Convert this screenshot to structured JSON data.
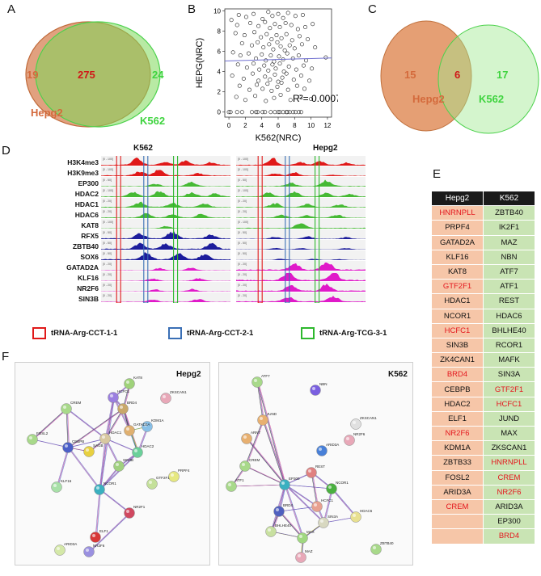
{
  "panels": {
    "a": "A",
    "b": "B",
    "c": "C",
    "d": "D",
    "e": "E",
    "f": "F"
  },
  "panel_a": {
    "left_label": "Hepg2",
    "right_label": "K562",
    "left_only": "19",
    "overlap": "275",
    "right_only": "24",
    "colors": {
      "left": "#d46a3c",
      "right": "#3fd43f",
      "overlap_text": "#d01818"
    }
  },
  "panel_c": {
    "left_label": "Hepg2",
    "right_label": "K562",
    "left_only": "15",
    "overlap": "6",
    "right_only": "17"
  },
  "chart_data": {
    "type": "scatter",
    "title": "",
    "xlabel": "K562(NRC)",
    "ylabel": "HEPG(NRC)",
    "xlim": [
      -0.5,
      12.5
    ],
    "ylim": [
      -0.5,
      10.2
    ],
    "xticks": [
      "0",
      "2",
      "4",
      "6",
      "8",
      "10",
      "12"
    ],
    "yticks": [
      "0",
      "2",
      "4",
      "6",
      "8",
      "10"
    ],
    "annotation": "R²= 0.0007",
    "trend_line": {
      "x": [
        -0.5,
        12.5
      ],
      "y": [
        5.05,
        5.35
      ]
    },
    "points": [
      [
        0.3,
        9.1
      ],
      [
        1.2,
        9.6
      ],
      [
        2.1,
        9.4
      ],
      [
        3.0,
        9.7
      ],
      [
        4.1,
        9.2
      ],
      [
        4.8,
        9.9
      ],
      [
        5.3,
        9.5
      ],
      [
        6.0,
        9.7
      ],
      [
        6.6,
        9.3
      ],
      [
        7.2,
        9.8
      ],
      [
        8.1,
        9.5
      ],
      [
        9.0,
        9.6
      ],
      [
        1.0,
        8.6
      ],
      [
        2.6,
        8.8
      ],
      [
        3.6,
        8.5
      ],
      [
        4.4,
        8.9
      ],
      [
        5.0,
        8.3
      ],
      [
        5.6,
        8.7
      ],
      [
        6.2,
        8.4
      ],
      [
        6.9,
        8.8
      ],
      [
        7.6,
        8.6
      ],
      [
        8.4,
        8.2
      ],
      [
        9.3,
        8.4
      ],
      [
        10.2,
        8.7
      ],
      [
        0.8,
        7.8
      ],
      [
        1.9,
        7.6
      ],
      [
        3.1,
        7.9
      ],
      [
        3.9,
        7.4
      ],
      [
        4.6,
        7.7
      ],
      [
        5.2,
        7.2
      ],
      [
        5.8,
        7.6
      ],
      [
        6.4,
        7.3
      ],
      [
        7.0,
        7.7
      ],
      [
        7.7,
        7.1
      ],
      [
        8.6,
        7.5
      ],
      [
        9.6,
        7.2
      ],
      [
        1.6,
        6.8
      ],
      [
        2.8,
        6.6
      ],
      [
        3.5,
        6.9
      ],
      [
        4.2,
        6.4
      ],
      [
        4.9,
        6.7
      ],
      [
        5.4,
        6.2
      ],
      [
        5.9,
        6.9
      ],
      [
        6.3,
        6.5
      ],
      [
        6.8,
        6.1
      ],
      [
        7.4,
        6.6
      ],
      [
        8.0,
        6.3
      ],
      [
        8.9,
        6.7
      ],
      [
        10.5,
        6.4
      ],
      [
        0.5,
        5.9
      ],
      [
        1.4,
        5.6
      ],
      [
        2.4,
        5.8
      ],
      [
        3.3,
        5.3
      ],
      [
        4.0,
        5.7
      ],
      [
        4.5,
        5.1
      ],
      [
        5.1,
        5.6
      ],
      [
        5.5,
        5.0
      ],
      [
        6.1,
        5.5
      ],
      [
        6.6,
        5.2
      ],
      [
        7.1,
        5.8
      ],
      [
        7.8,
        5.3
      ],
      [
        8.5,
        5.6
      ],
      [
        9.4,
        5.1
      ],
      [
        11.8,
        5.4
      ],
      [
        1.1,
        4.7
      ],
      [
        2.2,
        4.4
      ],
      [
        3.0,
        4.8
      ],
      [
        3.7,
        4.2
      ],
      [
        4.3,
        4.6
      ],
      [
        4.8,
        4.1
      ],
      [
        5.3,
        4.7
      ],
      [
        5.7,
        4.3
      ],
      [
        6.2,
        4.8
      ],
      [
        6.7,
        4.0
      ],
      [
        7.3,
        4.5
      ],
      [
        8.2,
        4.2
      ],
      [
        9.1,
        4.6
      ],
      [
        10.1,
        4.3
      ],
      [
        0.4,
        3.6
      ],
      [
        1.8,
        3.3
      ],
      [
        2.9,
        3.8
      ],
      [
        3.6,
        3.1
      ],
      [
        4.4,
        3.5
      ],
      [
        5.0,
        3.2
      ],
      [
        5.6,
        3.7
      ],
      [
        6.0,
        3.0
      ],
      [
        6.5,
        3.4
      ],
      [
        7.0,
        3.8
      ],
      [
        7.9,
        3.2
      ],
      [
        8.8,
        3.6
      ],
      [
        9.8,
        3.1
      ],
      [
        1.3,
        2.6
      ],
      [
        2.5,
        2.2
      ],
      [
        3.4,
        2.7
      ],
      [
        4.1,
        2.3
      ],
      [
        4.7,
        2.8
      ],
      [
        5.2,
        2.1
      ],
      [
        5.9,
        2.5
      ],
      [
        6.4,
        2.9
      ],
      [
        7.2,
        2.2
      ],
      [
        8.3,
        2.6
      ],
      [
        9.2,
        2.3
      ],
      [
        0.9,
        1.5
      ],
      [
        2.0,
        1.2
      ],
      [
        3.2,
        1.6
      ],
      [
        4.5,
        1.1
      ],
      [
        5.5,
        1.4
      ],
      [
        6.3,
        1.7
      ],
      [
        7.5,
        1.2
      ],
      [
        8.7,
        1.5
      ],
      [
        10.0,
        1.3
      ],
      [
        0.0,
        0
      ],
      [
        0.2,
        0
      ],
      [
        1.0,
        0
      ],
      [
        1.6,
        0
      ],
      [
        2.8,
        0
      ],
      [
        3.3,
        0
      ],
      [
        3.5,
        0
      ],
      [
        4.1,
        0
      ],
      [
        4.4,
        0
      ],
      [
        5.1,
        0
      ],
      [
        5.6,
        0
      ],
      [
        6.0,
        0
      ],
      [
        6.2,
        0
      ],
      [
        6.6,
        0
      ],
      [
        7.0,
        0
      ],
      [
        7.1,
        0
      ],
      [
        7.4,
        0
      ],
      [
        7.8,
        0
      ],
      [
        8.1,
        0
      ],
      [
        8.5,
        0
      ],
      [
        8.8,
        0
      ]
    ]
  },
  "panel_d": {
    "cell_left": "K562",
    "cell_right": "Hepg2",
    "tracks": [
      {
        "name": "H3K4me3",
        "color": "#e01919",
        "range": "[0 - 100]"
      },
      {
        "name": "H3K9me3",
        "color": "#e01919",
        "range": "[0 - 100]"
      },
      {
        "name": "EP300",
        "color": "#46b934",
        "range": "[0 - 50]"
      },
      {
        "name": "HDAC2",
        "color": "#46b934",
        "range": "[0 - 100]"
      },
      {
        "name": "HDAC1",
        "color": "#46b934",
        "range": "[0 - 20]"
      },
      {
        "name": "HDAC6",
        "color": "#46b934",
        "range": "[0 - 20]"
      },
      {
        "name": "KAT8",
        "color": "#46b934",
        "range": "[0 - 100]"
      },
      {
        "name": "RFX5",
        "color": "#1d1d9c",
        "range": "[0 - 50]"
      },
      {
        "name": "ZBTB40",
        "color": "#1d1d9c",
        "range": "[0 - 50]"
      },
      {
        "name": "SOX6",
        "color": "#1d1d9c",
        "range": "[0 - 50]"
      },
      {
        "name": "GATAD2A",
        "color": "#e01ac9",
        "range": "[0 - 20]"
      },
      {
        "name": "KLF16",
        "color": "#e01ac9",
        "range": "[0 - 20]"
      },
      {
        "name": "NR2F6",
        "color": "#e01ac9",
        "range": "[0 - 20]"
      },
      {
        "name": "SIN3B",
        "color": "#e01ac9",
        "range": "[0 - 20]"
      }
    ],
    "legend": [
      {
        "label": "tRNA-Arg-CCT-1-1",
        "color": "#e01919"
      },
      {
        "label": "tRNA-Arg-CCT-2-1",
        "color": "#3a6fb5"
      },
      {
        "label": "tRNA-Arg-TCG-3-1",
        "color": "#2db82d"
      }
    ]
  },
  "panel_e": {
    "headers": [
      "Hepg2",
      "K562"
    ],
    "rows": [
      [
        {
          "t": "HNRNPLL",
          "red": true
        },
        {
          "t": "ZBTB40",
          "red": false
        }
      ],
      [
        {
          "t": "PRPF4",
          "red": false
        },
        {
          "t": "IK2F1",
          "red": false
        }
      ],
      [
        {
          "t": "GATAD2A",
          "red": false
        },
        {
          "t": "MAZ",
          "red": false
        }
      ],
      [
        {
          "t": "KLF16",
          "red": false
        },
        {
          "t": "NBN",
          "red": false
        }
      ],
      [
        {
          "t": "KAT8",
          "red": false
        },
        {
          "t": "ATF7",
          "red": false
        }
      ],
      [
        {
          "t": "GTF2F1",
          "red": true
        },
        {
          "t": "ATF1",
          "red": false
        }
      ],
      [
        {
          "t": "HDAC1",
          "red": false
        },
        {
          "t": "REST",
          "red": false
        }
      ],
      [
        {
          "t": "NCOR1",
          "red": false
        },
        {
          "t": "HDAC6",
          "red": false
        }
      ],
      [
        {
          "t": "HCFC1",
          "red": true
        },
        {
          "t": "BHLHE40",
          "red": false
        }
      ],
      [
        {
          "t": "SIN3B",
          "red": false
        },
        {
          "t": "RCOR1",
          "red": false
        }
      ],
      [
        {
          "t": "ZK4CAN1",
          "red": false
        },
        {
          "t": "MAFK",
          "red": false
        }
      ],
      [
        {
          "t": "BRD4",
          "red": true
        },
        {
          "t": "SIN3A",
          "red": false
        }
      ],
      [
        {
          "t": "CEBPB",
          "red": false
        },
        {
          "t": "GTF2F1",
          "red": true
        }
      ],
      [
        {
          "t": "HDAC2",
          "red": false
        },
        {
          "t": "HCFC1",
          "red": true
        }
      ],
      [
        {
          "t": "ELF1",
          "red": false
        },
        {
          "t": "JUND",
          "red": false
        }
      ],
      [
        {
          "t": "NR2F6",
          "red": true
        },
        {
          "t": "MAX",
          "red": false
        }
      ],
      [
        {
          "t": "KDM1A",
          "red": false
        },
        {
          "t": "ZKSCAN1",
          "red": false
        }
      ],
      [
        {
          "t": "ZBTB33",
          "red": false
        },
        {
          "t": "HNRNPLL",
          "red": true
        }
      ],
      [
        {
          "t": "FOSL2",
          "red": false
        },
        {
          "t": "CREM",
          "red": true
        }
      ],
      [
        {
          "t": "ARID3A",
          "red": false
        },
        {
          "t": "NR2F6",
          "red": true
        }
      ],
      [
        {
          "t": "CREM",
          "red": true
        },
        {
          "t": "ARID3A",
          "red": false
        }
      ],
      [
        {
          "t": "",
          "red": false
        },
        {
          "t": "EP300",
          "red": false
        }
      ],
      [
        {
          "t": "",
          "red": false
        },
        {
          "t": "BRD4",
          "red": true
        }
      ]
    ]
  },
  "panel_f": {
    "left_title": "Hepg2",
    "right_title": "K562",
    "left_nodes": [
      {
        "id": "KAT8",
        "x": 160,
        "y": 475,
        "c": "#9fd27a"
      },
      {
        "id": "HCFC1",
        "x": 140,
        "y": 492,
        "c": "#9b7fe0"
      },
      {
        "id": "ZKSCAN1",
        "x": 205,
        "y": 493,
        "c": "#e8a8b8"
      },
      {
        "id": "CREM",
        "x": 82,
        "y": 506,
        "c": "#a8d98a"
      },
      {
        "id": "BRD4",
        "x": 152,
        "y": 506,
        "c": "#c9a86a"
      },
      {
        "id": "KDM1A",
        "x": 182,
        "y": 528,
        "c": "#88c0e8"
      },
      {
        "id": "GATAD2A",
        "x": 160,
        "y": 533,
        "c": "#e0b070"
      },
      {
        "id": "HDAC1",
        "x": 130,
        "y": 543,
        "c": "#d8c8a0"
      },
      {
        "id": "FOSL2",
        "x": 40,
        "y": 544,
        "c": "#a8d98a"
      },
      {
        "id": "CEBPB",
        "x": 84,
        "y": 554,
        "c": "#4b5fc8"
      },
      {
        "id": "SAGB",
        "x": 110,
        "y": 559,
        "c": "#e8d040"
      },
      {
        "id": "HDAC2",
        "x": 170,
        "y": 560,
        "c": "#6bd09a"
      },
      {
        "id": "SIN3B",
        "x": 147,
        "y": 577,
        "c": "#a0d080"
      },
      {
        "id": "PRPF4",
        "x": 215,
        "y": 590,
        "c": "#e6e880"
      },
      {
        "id": "GTF2F1",
        "x": 188,
        "y": 599,
        "c": "#c4e09a"
      },
      {
        "id": "KLF16",
        "x": 70,
        "y": 603,
        "c": "#a8e0a8"
      },
      {
        "id": "NCOR1",
        "x": 123,
        "y": 606,
        "c": "#3ab0c0"
      },
      {
        "id": "NR2F1",
        "x": 160,
        "y": 635,
        "c": "#d04860"
      },
      {
        "id": "ELF1",
        "x": 118,
        "y": 665,
        "c": "#d83838"
      },
      {
        "id": "ARID3A",
        "x": 74,
        "y": 681,
        "c": "#d4e8a8"
      },
      {
        "id": "NR2F6",
        "x": 110,
        "y": 683,
        "c": "#9a90e0"
      }
    ],
    "right_nodes": [
      {
        "id": "ATF7",
        "x": 318,
        "y": 473,
        "c": "#a8d98a"
      },
      {
        "id": "NBN",
        "x": 390,
        "y": 483,
        "c": "#7a5fe0"
      },
      {
        "id": "JUND",
        "x": 325,
        "y": 520,
        "c": "#e8b070"
      },
      {
        "id": "ZKSCAN1",
        "x": 440,
        "y": 525,
        "c": "#e0e0e0"
      },
      {
        "id": "NR2F6",
        "x": 432,
        "y": 545,
        "c": "#e8a8b8"
      },
      {
        "id": "ARNT",
        "x": 305,
        "y": 543,
        "c": "#e8b070"
      },
      {
        "id": "ARID3A",
        "x": 398,
        "y": 558,
        "c": "#4880d8"
      },
      {
        "id": "REST",
        "x": 385,
        "y": 585,
        "c": "#e08080"
      },
      {
        "id": "CREM",
        "x": 303,
        "y": 577,
        "c": "#a8d98a"
      },
      {
        "id": "EP300",
        "x": 352,
        "y": 600,
        "c": "#3ab0c0"
      },
      {
        "id": "NCOR1",
        "x": 410,
        "y": 605,
        "c": "#4ab040"
      },
      {
        "id": "ATF1",
        "x": 286,
        "y": 602,
        "c": "#a8d98a"
      },
      {
        "id": "HCFC1",
        "x": 392,
        "y": 627,
        "c": "#e8a090"
      },
      {
        "id": "BRD4",
        "x": 345,
        "y": 633,
        "c": "#5060c0"
      },
      {
        "id": "SIN3A",
        "x": 400,
        "y": 647,
        "c": "#d8d8c0"
      },
      {
        "id": "HDAC6",
        "x": 440,
        "y": 640,
        "c": "#e8e090"
      },
      {
        "id": "BHLHE40",
        "x": 335,
        "y": 658,
        "c": "#c8e0a0"
      },
      {
        "id": "MAX",
        "x": 374,
        "y": 666,
        "c": "#a0d880"
      },
      {
        "id": "MAZ",
        "x": 372,
        "y": 690,
        "c": "#e8a8b8"
      },
      {
        "id": "ZBTB40",
        "x": 465,
        "y": 680,
        "c": "#a8d98a"
      }
    ]
  }
}
